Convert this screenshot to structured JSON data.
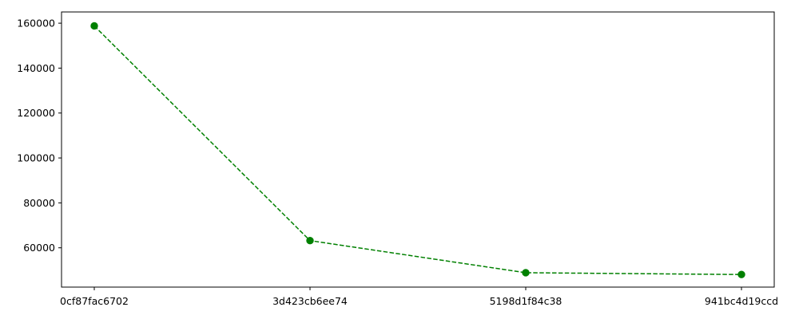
{
  "chart_data": {
    "type": "line",
    "categories": [
      "0cf87fac6702",
      "3d423cb6ee74",
      "5198d1f84c38",
      "941bc4d19ccd"
    ],
    "series": [
      {
        "values": [
          158800,
          63200,
          48900,
          48100
        ],
        "color": "#008000",
        "line_style": "dashed",
        "marker": "circle"
      }
    ],
    "ylim": [
      42500,
      165000
    ],
    "yticks": [
      60000,
      80000,
      100000,
      120000,
      140000,
      160000
    ],
    "ytick_labels": [
      "60000",
      "80000",
      "100000",
      "120000",
      "140000",
      "160000"
    ],
    "grid": false,
    "title": "",
    "xlabel": "",
    "ylabel": ""
  }
}
